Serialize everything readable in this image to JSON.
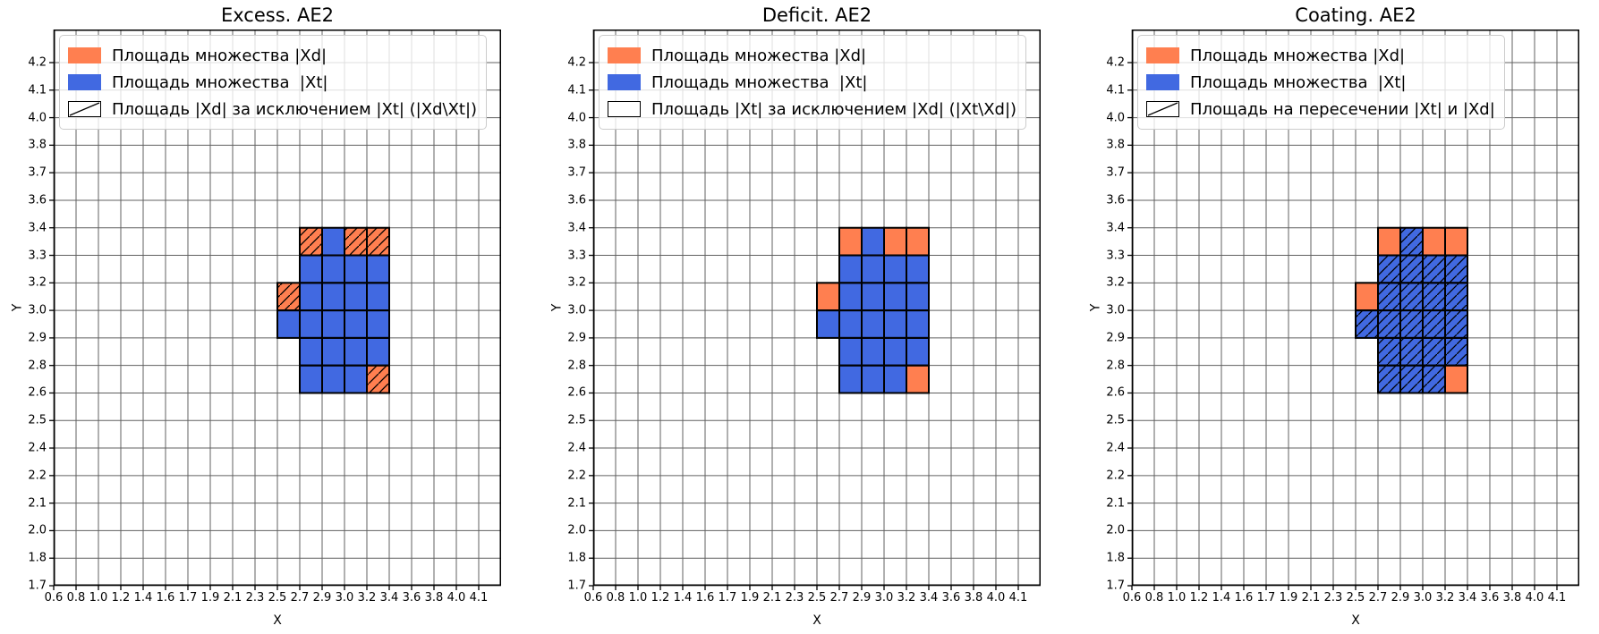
{
  "colors": {
    "set_xd": "#FF7F50",
    "set_xt": "#4169E1",
    "grid": "#606060",
    "cell_border": "#000000",
    "legend_border": "#cccccc"
  },
  "axes": {
    "x_label": "X",
    "y_label": "Y",
    "x_ticks": [
      "0.6",
      "0.8",
      "1.0",
      "1.2",
      "1.4",
      "1.6",
      "1.7",
      "1.9",
      "2.1",
      "2.3",
      "2.5",
      "2.7",
      "2.9",
      "3.0",
      "3.2",
      "3.4",
      "3.6",
      "3.8",
      "4.0",
      "4.1"
    ],
    "y_ticks": [
      "4.2",
      "4.1",
      "4.0",
      "3.8",
      "3.7",
      "3.6",
      "3.4",
      "3.3",
      "3.2",
      "3.0",
      "2.9",
      "2.8",
      "2.6",
      "2.5",
      "2.4",
      "2.2",
      "2.1",
      "2.0",
      "1.8",
      "1.7"
    ]
  },
  "cell_format": "[x_tick_index_of_left_edge, y_tick_index_of_top_edge, set (Xd=orange / Xt=blue), hatch 0|1]; tick indices refer to axes.x_ticks / axes.y_ticks",
  "chart_data": [
    {
      "type": "heatmap",
      "title": "Excess. AE2",
      "xlabel": "X",
      "ylabel": "Y",
      "xlim": [
        0.6,
        4.28
      ],
      "ylim": [
        1.7,
        4.29
      ],
      "grid": true,
      "legend_position": "upper left",
      "legend": [
        {
          "swatch": "solid-Xd",
          "label": "Площадь множества |Xd|"
        },
        {
          "swatch": "solid-Xt",
          "label": "Площадь множества  |Xt|"
        },
        {
          "swatch": "hatch",
          "label": "Площадь |Xd| за исключением |Xt| (|Xd\\Xt|)"
        }
      ],
      "cells": [
        [
          11,
          6,
          "Xd",
          1
        ],
        [
          12,
          6,
          "Xt",
          0
        ],
        [
          13,
          6,
          "Xd",
          1
        ],
        [
          14,
          6,
          "Xd",
          1
        ],
        [
          11,
          7,
          "Xt",
          0
        ],
        [
          12,
          7,
          "Xt",
          0
        ],
        [
          13,
          7,
          "Xt",
          0
        ],
        [
          14,
          7,
          "Xt",
          0
        ],
        [
          10,
          8,
          "Xd",
          1
        ],
        [
          11,
          8,
          "Xt",
          0
        ],
        [
          12,
          8,
          "Xt",
          0
        ],
        [
          13,
          8,
          "Xt",
          0
        ],
        [
          14,
          8,
          "Xt",
          0
        ],
        [
          10,
          9,
          "Xt",
          0
        ],
        [
          11,
          9,
          "Xt",
          0
        ],
        [
          12,
          9,
          "Xt",
          0
        ],
        [
          13,
          9,
          "Xt",
          0
        ],
        [
          14,
          9,
          "Xt",
          0
        ],
        [
          11,
          10,
          "Xt",
          0
        ],
        [
          12,
          10,
          "Xt",
          0
        ],
        [
          13,
          10,
          "Xt",
          0
        ],
        [
          14,
          10,
          "Xt",
          0
        ],
        [
          11,
          11,
          "Xt",
          0
        ],
        [
          12,
          11,
          "Xt",
          0
        ],
        [
          13,
          11,
          "Xt",
          0
        ],
        [
          14,
          11,
          "Xd",
          1
        ]
      ]
    },
    {
      "type": "heatmap",
      "title": "Deficit. AE2",
      "xlabel": "X",
      "ylabel": "Y",
      "xlim": [
        0.6,
        4.28
      ],
      "ylim": [
        1.7,
        4.29
      ],
      "grid": true,
      "legend_position": "upper left",
      "legend": [
        {
          "swatch": "solid-Xd",
          "label": "Площадь множества |Xd|"
        },
        {
          "swatch": "solid-Xt",
          "label": "Площадь множества  |Xt|"
        },
        {
          "swatch": "empty",
          "label": "Площадь |Xt| за исключением |Xd| (|Xt\\Xd|)"
        }
      ],
      "cells": [
        [
          11,
          6,
          "Xd",
          0
        ],
        [
          12,
          6,
          "Xt",
          0
        ],
        [
          13,
          6,
          "Xd",
          0
        ],
        [
          14,
          6,
          "Xd",
          0
        ],
        [
          11,
          7,
          "Xt",
          0
        ],
        [
          12,
          7,
          "Xt",
          0
        ],
        [
          13,
          7,
          "Xt",
          0
        ],
        [
          14,
          7,
          "Xt",
          0
        ],
        [
          10,
          8,
          "Xd",
          0
        ],
        [
          11,
          8,
          "Xt",
          0
        ],
        [
          12,
          8,
          "Xt",
          0
        ],
        [
          13,
          8,
          "Xt",
          0
        ],
        [
          14,
          8,
          "Xt",
          0
        ],
        [
          10,
          9,
          "Xt",
          0
        ],
        [
          11,
          9,
          "Xt",
          0
        ],
        [
          12,
          9,
          "Xt",
          0
        ],
        [
          13,
          9,
          "Xt",
          0
        ],
        [
          14,
          9,
          "Xt",
          0
        ],
        [
          11,
          10,
          "Xt",
          0
        ],
        [
          12,
          10,
          "Xt",
          0
        ],
        [
          13,
          10,
          "Xt",
          0
        ],
        [
          14,
          10,
          "Xt",
          0
        ],
        [
          11,
          11,
          "Xt",
          0
        ],
        [
          12,
          11,
          "Xt",
          0
        ],
        [
          13,
          11,
          "Xt",
          0
        ],
        [
          14,
          11,
          "Xd",
          0
        ]
      ]
    },
    {
      "type": "heatmap",
      "title": "Coating. AE2",
      "xlabel": "X",
      "ylabel": "Y",
      "xlim": [
        0.6,
        4.28
      ],
      "ylim": [
        1.7,
        4.29
      ],
      "grid": true,
      "legend_position": "upper left",
      "legend": [
        {
          "swatch": "solid-Xd",
          "label": "Площадь множества |Xd|"
        },
        {
          "swatch": "solid-Xt",
          "label": "Площадь множества  |Xt|"
        },
        {
          "swatch": "hatch",
          "label": "Площадь на пересечении |Xt| и |Xd|"
        }
      ],
      "cells": [
        [
          11,
          6,
          "Xd",
          0
        ],
        [
          12,
          6,
          "Xt",
          1
        ],
        [
          13,
          6,
          "Xd",
          0
        ],
        [
          14,
          6,
          "Xd",
          0
        ],
        [
          11,
          7,
          "Xt",
          1
        ],
        [
          12,
          7,
          "Xt",
          1
        ],
        [
          13,
          7,
          "Xt",
          1
        ],
        [
          14,
          7,
          "Xt",
          1
        ],
        [
          10,
          8,
          "Xd",
          0
        ],
        [
          11,
          8,
          "Xt",
          1
        ],
        [
          12,
          8,
          "Xt",
          1
        ],
        [
          13,
          8,
          "Xt",
          1
        ],
        [
          14,
          8,
          "Xt",
          1
        ],
        [
          10,
          9,
          "Xt",
          1
        ],
        [
          11,
          9,
          "Xt",
          1
        ],
        [
          12,
          9,
          "Xt",
          1
        ],
        [
          13,
          9,
          "Xt",
          1
        ],
        [
          14,
          9,
          "Xt",
          1
        ],
        [
          11,
          10,
          "Xt",
          1
        ],
        [
          12,
          10,
          "Xt",
          1
        ],
        [
          13,
          10,
          "Xt",
          1
        ],
        [
          14,
          10,
          "Xt",
          1
        ],
        [
          11,
          11,
          "Xt",
          1
        ],
        [
          12,
          11,
          "Xt",
          1
        ],
        [
          13,
          11,
          "Xt",
          1
        ],
        [
          14,
          11,
          "Xd",
          0
        ]
      ]
    }
  ]
}
